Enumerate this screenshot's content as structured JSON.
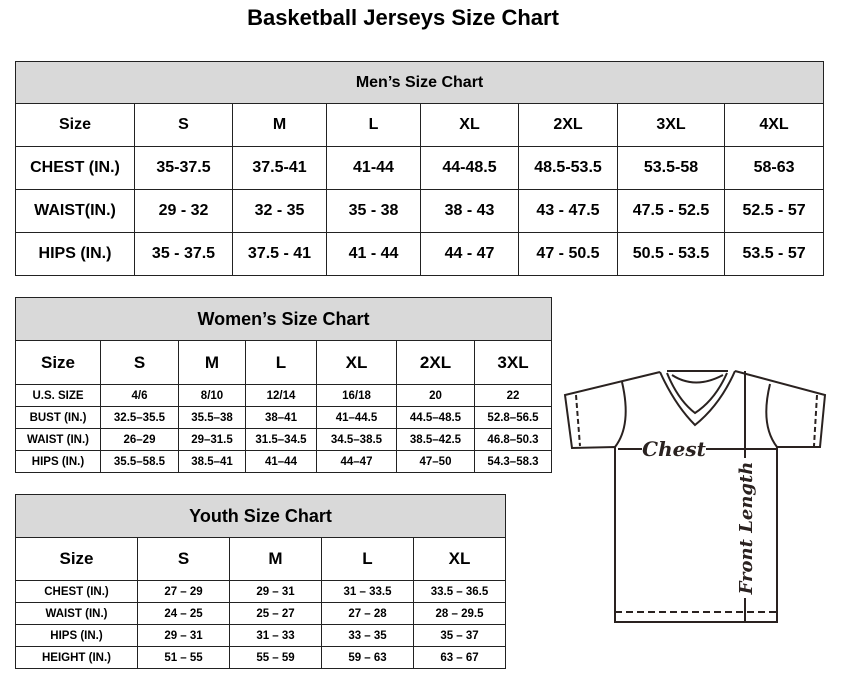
{
  "title": "Basketball Jerseys Size Chart",
  "men": {
    "caption": "Men’s Size Chart",
    "header": [
      "Size",
      "S",
      "M",
      "L",
      "XL",
      "2XL",
      "3XL",
      "4XL"
    ],
    "rows": [
      [
        "CHEST (IN.)",
        "35-37.5",
        "37.5-41",
        "41-44",
        "44-48.5",
        "48.5-53.5",
        "53.5-58",
        "58-63"
      ],
      [
        "WAIST(IN.)",
        "29 - 32",
        "32 - 35",
        "35 - 38",
        "38 - 43",
        "43 - 47.5",
        "47.5 - 52.5",
        "52.5 - 57"
      ],
      [
        "HIPS (IN.)",
        "35 - 37.5",
        "37.5 - 41",
        "41 - 44",
        "44 - 47",
        "47 - 50.5",
        "50.5 - 53.5",
        "53.5 - 57"
      ]
    ]
  },
  "women": {
    "caption": "Women’s Size Chart",
    "header": [
      "Size",
      "S",
      "M",
      "L",
      "XL",
      "2XL",
      "3XL"
    ],
    "rows": [
      [
        "U.S.  SIZE",
        "4/6",
        "8/10",
        "12/14",
        "16/18",
        "20",
        "22"
      ],
      [
        "BUST  (IN.)",
        "32.5–35.5",
        "35.5–38",
        "38–41",
        "41–44.5",
        "44.5–48.5",
        "52.8–56.5"
      ],
      [
        "WAIST  (IN.)",
        "26–29",
        "29–31.5",
        "31.5–34.5",
        "34.5–38.5",
        "38.5–42.5",
        "46.8–50.3"
      ],
      [
        "HIPS  (IN.)",
        "35.5–58.5",
        "38.5–41",
        "41–44",
        "44–47",
        "47–50",
        "54.3–58.3"
      ]
    ]
  },
  "youth": {
    "caption": "Youth Size Chart",
    "header": [
      "Size",
      "S",
      "M",
      "L",
      "XL"
    ],
    "rows": [
      [
        "CHEST  (IN.)",
        "27  –  29",
        "29  –  31",
        "31  –  33.5",
        "33.5  –  36.5"
      ],
      [
        "WAIST  (IN.)",
        "24  –  25",
        "25  –  27",
        "27  –  28",
        "28  –  29.5"
      ],
      [
        "HIPS  (IN.)",
        "29  –  31",
        "31  –  33",
        "33  –  35",
        "35  –  37"
      ],
      [
        "HEIGHT  (IN.)",
        "51  –  55",
        "55  –  59",
        "59  –  63",
        "63  –  67"
      ]
    ]
  },
  "diagram": {
    "chest_label": "Chest",
    "length_label": "Front Length",
    "icon": "t-shirt-icon"
  }
}
